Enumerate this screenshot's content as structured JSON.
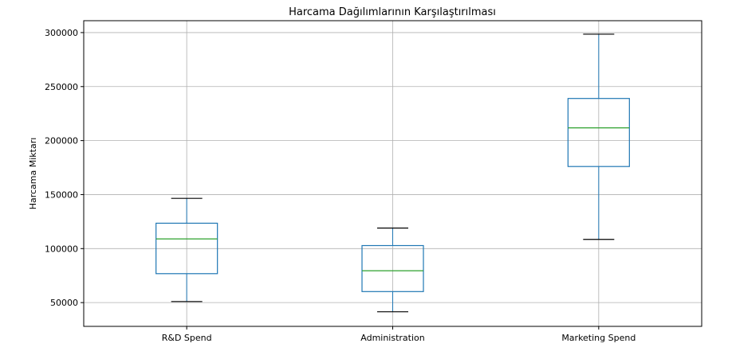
{
  "chart_data": {
    "type": "box",
    "title": "Harcama Dağılımlarının Karşılaştırılması",
    "xlabel": "",
    "ylabel": "Harcama Miktarı",
    "categories": [
      "R&D Spend",
      "Administration",
      "Marketing Spend"
    ],
    "boxes": [
      {
        "whisker_low": 51000,
        "q1": 76800,
        "median": 109000,
        "q3": 123500,
        "whisker_high": 146500
      },
      {
        "whisker_low": 41500,
        "q1": 60200,
        "median": 79500,
        "q3": 102800,
        "whisker_high": 119000
      },
      {
        "whisker_low": 108500,
        "q1": 176000,
        "median": 211800,
        "q3": 239000,
        "whisker_high": 298500
      }
    ],
    "yticks": [
      50000,
      100000,
      150000,
      200000,
      250000,
      300000
    ],
    "ylim": [
      28000,
      311000
    ],
    "grid": true,
    "colors": {
      "box": "#1f77b4",
      "median": "#2ca02c",
      "whisker_cap": "#000000",
      "grid": "#b0b0b0"
    }
  }
}
